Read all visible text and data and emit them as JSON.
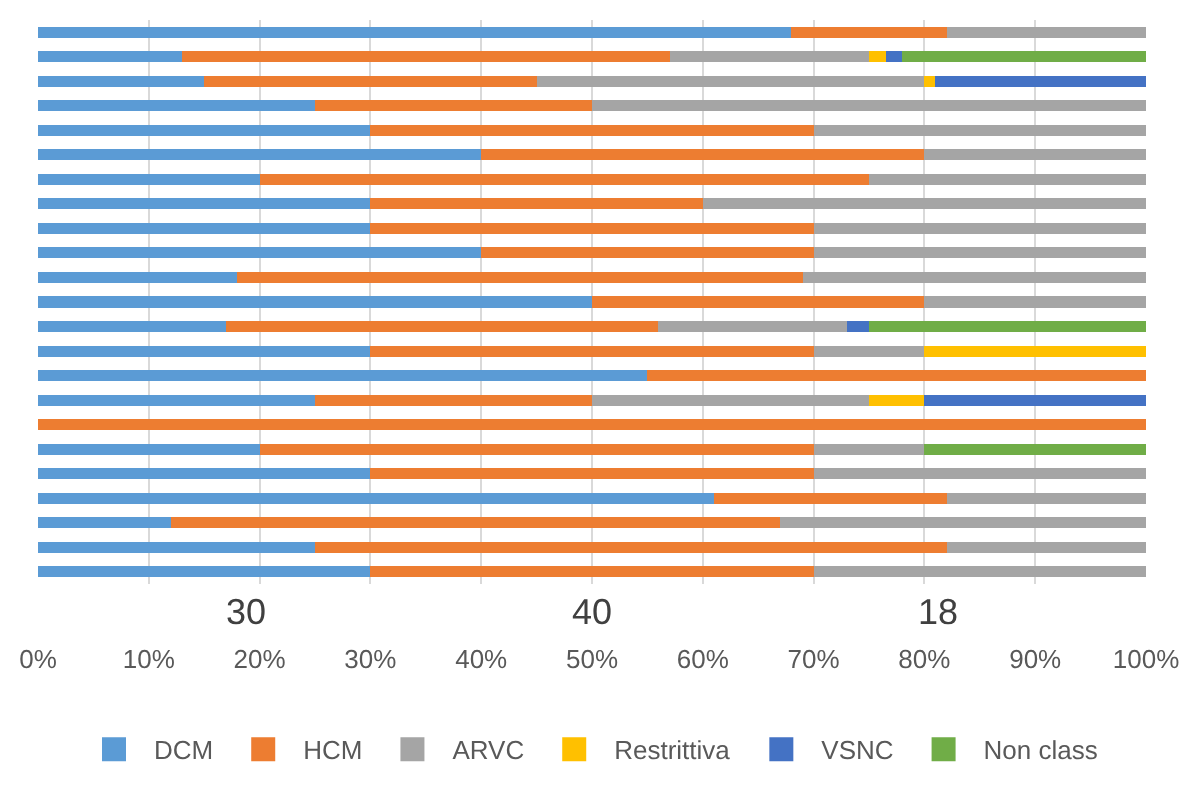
{
  "chart_data": {
    "type": "bar",
    "orientation": "horizontal",
    "stacked": true,
    "categories": [
      null,
      null,
      null,
      null,
      null,
      null,
      null,
      null,
      null,
      null,
      null,
      null,
      null,
      null,
      null,
      null,
      null,
      null,
      null,
      null,
      null,
      null,
      null
    ],
    "series": [
      {
        "name": "DCM",
        "color": "#5b9bd5",
        "values": [
          68,
          13,
          15,
          25,
          30,
          40,
          20,
          30,
          30,
          40,
          18,
          50,
          17,
          30,
          55,
          25,
          0,
          20,
          30,
          61,
          12,
          25,
          30
        ]
      },
      {
        "name": "HCM",
        "color": "#ed7d31",
        "values": [
          14,
          44,
          30,
          25,
          40,
          40,
          55,
          30,
          40,
          30,
          51,
          30,
          39,
          40,
          45,
          25,
          100,
          50,
          40,
          21,
          55,
          57,
          40
        ]
      },
      {
        "name": "ARVC",
        "color": "#a5a5a5",
        "values": [
          18,
          18,
          35,
          50,
          30,
          20,
          25,
          40,
          30,
          30,
          31,
          20,
          17,
          10,
          0,
          25,
          0,
          10,
          30,
          18,
          33,
          18,
          30
        ]
      },
      {
        "name": "Restrittiva",
        "color": "#ffc000",
        "values": [
          0,
          1.5,
          1,
          0,
          0,
          0,
          0,
          0,
          0,
          0,
          0,
          0,
          0,
          20,
          0,
          5,
          0,
          0,
          0,
          0,
          0,
          0,
          0
        ]
      },
      {
        "name": "VSNC",
        "color": "#4472c4",
        "values": [
          0,
          1.5,
          19,
          0,
          0,
          0,
          0,
          0,
          0,
          0,
          0,
          0,
          2,
          0,
          0,
          20,
          0,
          0,
          0,
          0,
          0,
          0,
          0
        ]
      },
      {
        "name": "Non class",
        "color": "#70ad47",
        "values": [
          0,
          22,
          0,
          0,
          0,
          0,
          0,
          0,
          0,
          0,
          0,
          0,
          25,
          0,
          0,
          0,
          0,
          20,
          0,
          0,
          0,
          0,
          0
        ]
      }
    ],
    "xlim": [
      0,
      100
    ],
    "xticks": [
      {
        "value": 0,
        "label": "0%"
      },
      {
        "value": 10,
        "label": "10%"
      },
      {
        "value": 20,
        "label": "20%"
      },
      {
        "value": 30,
        "label": "30%"
      },
      {
        "value": 40,
        "label": "40%"
      },
      {
        "value": 50,
        "label": "50%"
      },
      {
        "value": 60,
        "label": "60%"
      },
      {
        "value": 70,
        "label": "70%"
      },
      {
        "value": 80,
        "label": "80%"
      },
      {
        "value": 90,
        "label": "90%"
      },
      {
        "value": 100,
        "label": "100%"
      }
    ],
    "annotations": [
      "30",
      "40",
      "18"
    ],
    "grid": "x",
    "legend": "bottom",
    "tick_labels": "x"
  }
}
